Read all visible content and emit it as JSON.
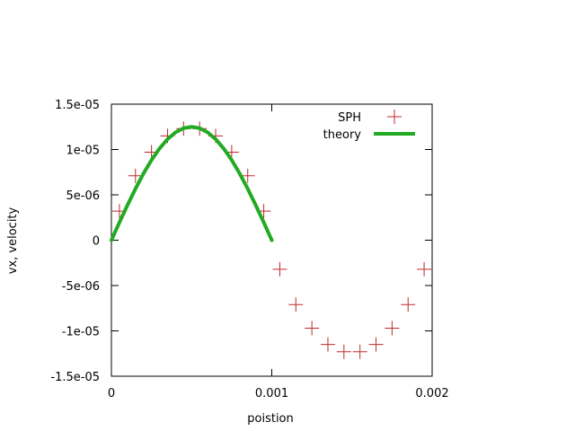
{
  "chart_data": {
    "type": "scatter",
    "xlabel": "poistion",
    "ylabel": "vx, velocity",
    "xlim": [
      0,
      0.002
    ],
    "ylim": [
      -1.5e-05,
      1.5e-05
    ],
    "x_ticks": [
      {
        "value": 0,
        "label": "0"
      },
      {
        "value": 0.001,
        "label": "0.001"
      },
      {
        "value": 0.002,
        "label": "0.002"
      }
    ],
    "y_ticks": [
      {
        "value": 1.5e-05,
        "label": "1.5e-05"
      },
      {
        "value": 1e-05,
        "label": "1e-05"
      },
      {
        "value": 5e-06,
        "label": "5e-06"
      },
      {
        "value": 0,
        "label": "0"
      },
      {
        "value": -5e-06,
        "label": "-5e-06"
      },
      {
        "value": -1e-05,
        "label": "-1e-05"
      },
      {
        "value": -1.5e-05,
        "label": "-1.5e-05"
      }
    ],
    "legend_position": "top-right",
    "grid": false,
    "series": [
      {
        "name": "SPH",
        "style": "points",
        "marker": "plus",
        "color": "#c0282c",
        "x": [
          5e-05,
          0.00015,
          0.00025,
          0.00035,
          0.00045,
          0.00055,
          0.00065,
          0.00075,
          0.00085,
          0.00095,
          0.00105,
          0.00115,
          0.00125,
          0.00135,
          0.00145,
          0.00155,
          0.00165,
          0.00175,
          0.00185,
          0.00195
        ],
        "y": [
          3.2e-06,
          7.1e-06,
          9.7e-06,
          1.15e-05,
          1.23e-05,
          1.23e-05,
          1.15e-05,
          9.7e-06,
          7.1e-06,
          3.2e-06,
          -3.2e-06,
          -7.1e-06,
          -9.7e-06,
          -1.15e-05,
          -1.23e-05,
          -1.23e-05,
          -1.15e-05,
          -9.7e-06,
          -7.1e-06,
          -3.2e-06
        ]
      },
      {
        "name": "theory",
        "style": "line",
        "color": "#22aa22",
        "x": [
          0,
          5e-05,
          0.0001,
          0.00015,
          0.0002,
          0.00025,
          0.0003,
          0.00035,
          0.0004,
          0.00045,
          0.0005,
          0.00055,
          0.0006,
          0.00065,
          0.0007,
          0.00075,
          0.0008,
          0.00085,
          0.0009,
          0.00095,
          0.001
        ],
        "y": [
          0,
          1.96e-06,
          3.86e-06,
          5.67e-06,
          7.35e-06,
          8.84e-06,
          1.011e-05,
          1.114e-05,
          1.189e-05,
          1.235e-05,
          1.25e-05,
          1.235e-05,
          1.189e-05,
          1.114e-05,
          1.011e-05,
          8.84e-06,
          7.35e-06,
          5.67e-06,
          3.86e-06,
          1.96e-06,
          0
        ]
      }
    ]
  }
}
